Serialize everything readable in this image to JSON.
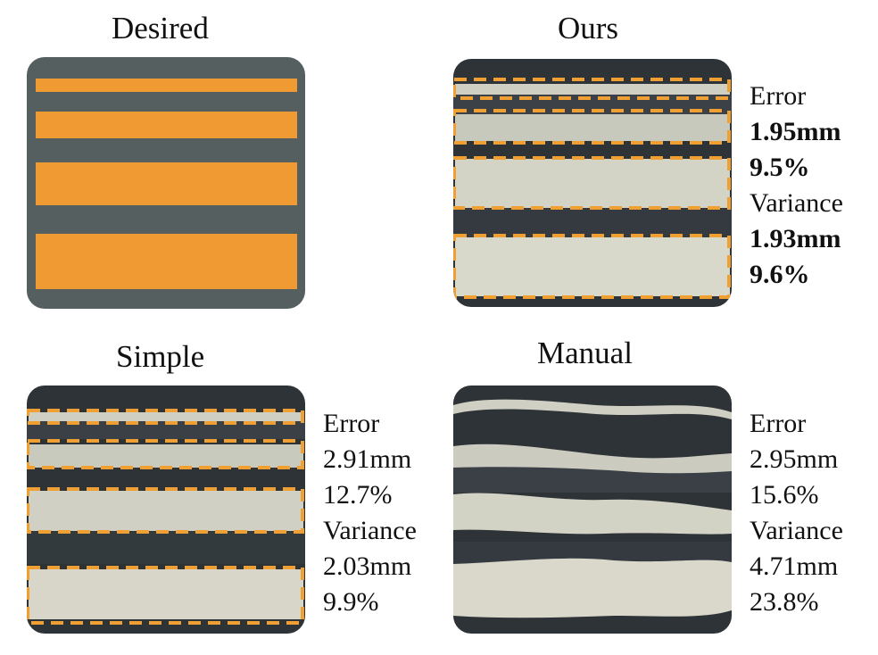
{
  "colors": {
    "substrate": "#555f60",
    "stripe": "#f09a33",
    "dashed_outline": "#f0a032",
    "photo_background": "#2e3337",
    "bead": "#cfcfc3"
  },
  "panels": {
    "desired": {
      "title": "Desired"
    },
    "ours": {
      "title": "Ours",
      "error_label": "Error",
      "error_mm": "1.95mm",
      "error_pct": "9.5%",
      "variance_label": "Variance",
      "variance_mm": "1.93mm",
      "variance_pct": "9.6%"
    },
    "simple": {
      "title": "Simple",
      "error_label": "Error",
      "error_mm": "2.91mm",
      "error_pct": "12.7%",
      "variance_label": "Variance",
      "variance_mm": "2.03mm",
      "variance_pct": "9.9%"
    },
    "manual": {
      "title": "Manual",
      "error_label": "Error",
      "error_mm": "2.95mm",
      "error_pct": "15.6%",
      "variance_label": "Variance",
      "variance_mm": "4.71mm",
      "variance_pct": "23.8%"
    }
  }
}
